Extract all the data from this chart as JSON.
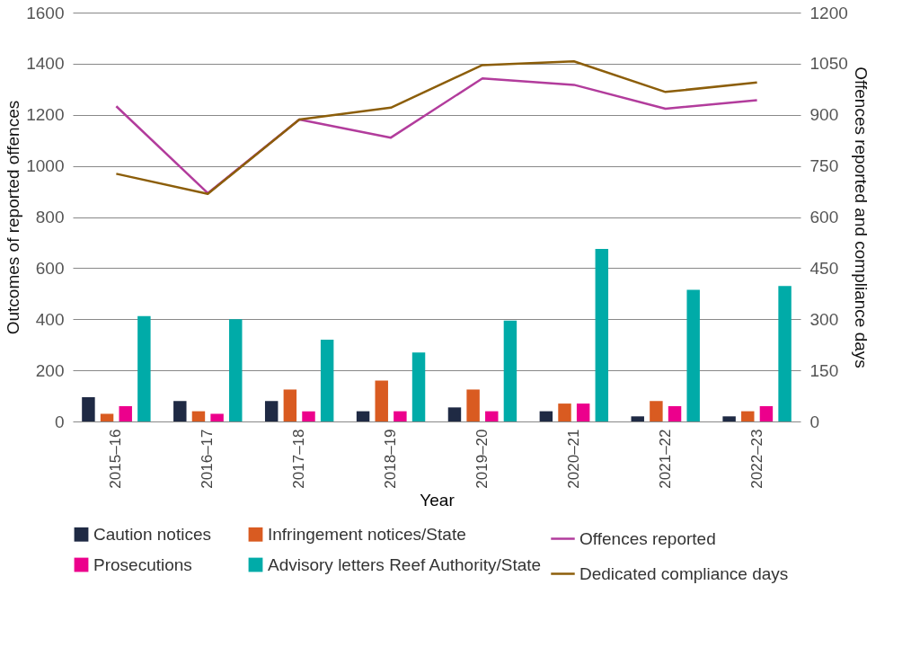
{
  "chart_data": {
    "type": "bar",
    "xlabel": "Year",
    "ylabel": "Outcomes of reported offences",
    "y2label": "Offences reported and compliance days",
    "categories": [
      "2015–16",
      "2016–17",
      "2017–18",
      "2018–19",
      "2019–20",
      "2020–21",
      "2021–22",
      "2022–23"
    ],
    "series": [
      {
        "name": "Caution notices",
        "color": "#1f2a44",
        "values": [
          95,
          80,
          80,
          40,
          55,
          40,
          20,
          20
        ]
      },
      {
        "name": "Infringement notices/State",
        "color": "#d95b21",
        "values": [
          30,
          40,
          125,
          160,
          125,
          70,
          80,
          40
        ]
      },
      {
        "name": "Prosecutions",
        "color": "#ec008c",
        "values": [
          60,
          30,
          40,
          40,
          40,
          70,
          60,
          60
        ]
      },
      {
        "name": "Advisory letters Reef Authority/State",
        "color": "#00aba8",
        "values": [
          412,
          400,
          320,
          270,
          395,
          675,
          515,
          530
        ]
      },
      {
        "name": "Offences reported",
        "color": "#b23c9c",
        "type": "line",
        "axis": "y2",
        "values": [
          925,
          670,
          886,
          833,
          1007,
          988,
          918,
          943
        ]
      },
      {
        "name": "Dedicated compliance days",
        "color": "#8c5e0a",
        "type": "line",
        "axis": "y2",
        "values": [
          727,
          668,
          886,
          921,
          1046,
          1057,
          967,
          995
        ]
      }
    ],
    "ylim": [
      0,
      1600
    ],
    "yticks": [
      0,
      200,
      400,
      600,
      800,
      1000,
      1200,
      1400,
      1600
    ],
    "y2lim": [
      0,
      1200
    ],
    "y2ticks": [
      0,
      150,
      300,
      450,
      600,
      750,
      900,
      1050,
      1200
    ],
    "grid": "y",
    "legend": "bottom"
  }
}
